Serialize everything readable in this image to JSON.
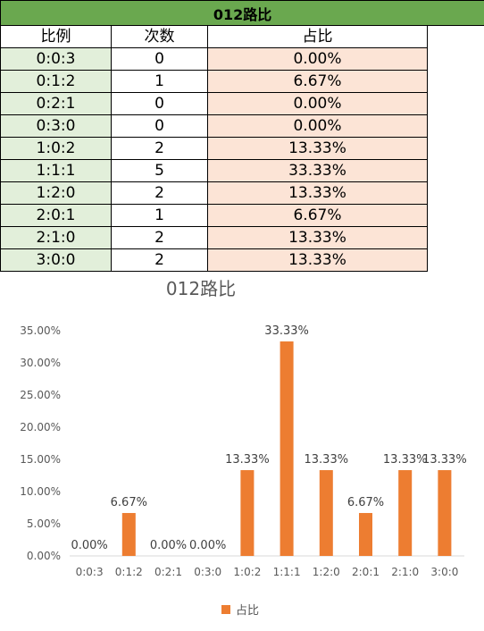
{
  "sheet": {
    "title": "012路比",
    "headers": [
      "比例",
      "次数",
      "占比"
    ],
    "rows": [
      {
        "ratio": "0:0:3",
        "count": "0",
        "pct": "0.00%"
      },
      {
        "ratio": "0:1:2",
        "count": "1",
        "pct": "6.67%"
      },
      {
        "ratio": "0:2:1",
        "count": "0",
        "pct": "0.00%"
      },
      {
        "ratio": "0:3:0",
        "count": "0",
        "pct": "0.00%"
      },
      {
        "ratio": "1:0:2",
        "count": "2",
        "pct": "13.33%"
      },
      {
        "ratio": "1:1:1",
        "count": "5",
        "pct": "33.33%"
      },
      {
        "ratio": "1:2:0",
        "count": "2",
        "pct": "13.33%"
      },
      {
        "ratio": "2:0:1",
        "count": "1",
        "pct": "6.67%"
      },
      {
        "ratio": "2:1:0",
        "count": "2",
        "pct": "13.33%"
      },
      {
        "ratio": "3:0:0",
        "count": "2",
        "pct": "13.33%"
      }
    ],
    "colors": {
      "title_bg": "#6aa84f",
      "ratio_bg": "#e2efda",
      "pct_bg": "#fce4d6"
    }
  },
  "chart_data": {
    "type": "bar",
    "title": "012路比",
    "categories": [
      "0:0:3",
      "0:1:2",
      "0:2:1",
      "0:3:0",
      "1:0:2",
      "1:1:1",
      "1:2:0",
      "2:0:1",
      "2:1:0",
      "3:0:0"
    ],
    "series": [
      {
        "name": "占比",
        "values": [
          0.0,
          6.67,
          0.0,
          0.0,
          13.33,
          33.33,
          13.33,
          6.67,
          13.33,
          13.33
        ],
        "labels": [
          "0.00%",
          "6.67%",
          "0.00%",
          "0.00%",
          "13.33%",
          "33.33%",
          "13.33%",
          "6.67%",
          "13.33%",
          "13.33%"
        ],
        "color": "#ed7d31"
      }
    ],
    "yticks": [
      "0.00%",
      "5.00%",
      "10.00%",
      "15.00%",
      "20.00%",
      "25.00%",
      "30.00%",
      "35.00%"
    ],
    "ylim": [
      0,
      35
    ],
    "grid": false,
    "legend": "bottom"
  }
}
